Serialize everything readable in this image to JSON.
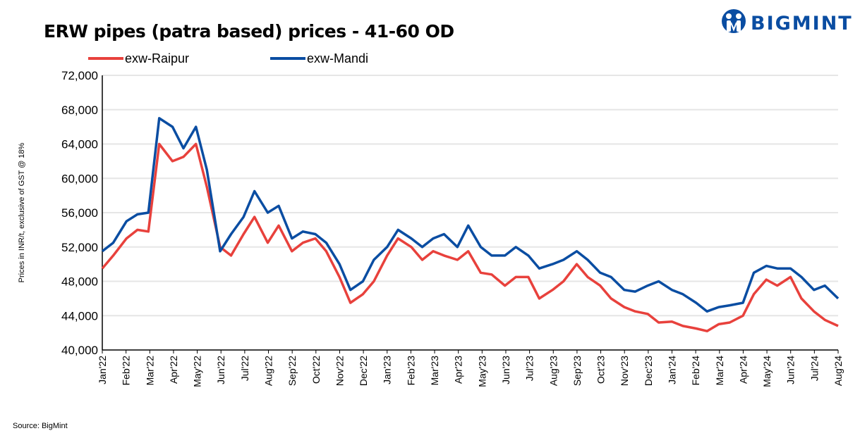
{
  "chart_data": {
    "type": "line",
    "title": "ERW pipes (patra based) prices - 41-60 OD",
    "ylabel": "Prices in INR/t, exclusive of GST @ 18%",
    "xlabel": "",
    "ylim": [
      40000,
      72000
    ],
    "yticks": [
      40000,
      44000,
      48000,
      52000,
      56000,
      60000,
      64000,
      68000,
      72000
    ],
    "ytick_labels": [
      "40,000",
      "44,000",
      "48,000",
      "52,000",
      "56,000",
      "60,000",
      "64,000",
      "68,000",
      "72,000"
    ],
    "xlim": [
      "2022-01-01",
      "2024-08-01"
    ],
    "xtick_labels": [
      "Jan'22",
      "Feb'22",
      "Mar'22",
      "Apr'22",
      "May'22",
      "Jun'22",
      "Jul'22",
      "Aug'22",
      "Sep'22",
      "Oct'22",
      "Nov'22",
      "Dec'22",
      "Jan'23",
      "Feb'23",
      "Mar'23",
      "Apr'23",
      "May'23",
      "Jun'23",
      "Jul'23",
      "Aug'23",
      "Sep'23",
      "Oct'23",
      "Nov'23",
      "Dec'23",
      "Jan'24",
      "Feb'24",
      "Mar'24",
      "Apr'24",
      "May'24",
      "Jun'24",
      "Jul'24",
      "Aug'24"
    ],
    "grid": "horizontal",
    "legend_position": "top-left",
    "x": [
      "2022-01-01",
      "2022-01-15",
      "2022-02-01",
      "2022-02-15",
      "2022-03-01",
      "2022-03-15",
      "2022-04-01",
      "2022-04-15",
      "2022-05-01",
      "2022-05-15",
      "2022-06-01",
      "2022-06-15",
      "2022-07-01",
      "2022-07-15",
      "2022-08-01",
      "2022-08-15",
      "2022-09-01",
      "2022-09-15",
      "2022-10-01",
      "2022-10-15",
      "2022-11-01",
      "2022-11-15",
      "2022-12-01",
      "2022-12-15",
      "2023-01-01",
      "2023-01-15",
      "2023-02-01",
      "2023-02-15",
      "2023-03-01",
      "2023-03-15",
      "2023-04-01",
      "2023-04-15",
      "2023-05-01",
      "2023-05-15",
      "2023-06-01",
      "2023-06-15",
      "2023-07-01",
      "2023-07-15",
      "2023-08-01",
      "2023-08-15",
      "2023-09-01",
      "2023-09-15",
      "2023-10-01",
      "2023-10-15",
      "2023-11-01",
      "2023-11-15",
      "2023-12-01",
      "2023-12-15",
      "2024-01-01",
      "2024-01-15",
      "2024-02-01",
      "2024-02-15",
      "2024-03-01",
      "2024-03-15",
      "2024-04-01",
      "2024-04-15",
      "2024-05-01",
      "2024-05-15",
      "2024-06-01",
      "2024-06-15",
      "2024-07-01",
      "2024-07-15",
      "2024-08-01"
    ],
    "series": [
      {
        "name": "exw-Raipur",
        "color": "#e8413c",
        "values": [
          49500,
          51000,
          53000,
          54000,
          53800,
          64000,
          62000,
          62500,
          64000,
          59000,
          52000,
          51000,
          53500,
          55500,
          52500,
          54500,
          51500,
          52500,
          53000,
          51500,
          48500,
          45500,
          46500,
          48000,
          51000,
          53000,
          52000,
          50500,
          51500,
          51000,
          50500,
          51500,
          49000,
          48800,
          47500,
          48500,
          48500,
          46000,
          47000,
          48000,
          50000,
          48500,
          47500,
          46000,
          45000,
          44500,
          44200,
          43200,
          43300,
          42800,
          42500,
          42200,
          43000,
          43200,
          44000,
          46500,
          48200,
          47500,
          48500,
          46000,
          44500,
          43500,
          42800
        ]
      },
      {
        "name": "exw-Mandi",
        "color": "#0a4da2",
        "values": [
          51500,
          52500,
          55000,
          55800,
          56000,
          67000,
          66000,
          63500,
          66000,
          61000,
          51500,
          53500,
          55500,
          58500,
          56000,
          56800,
          53000,
          53800,
          53500,
          52500,
          50000,
          47000,
          48000,
          50500,
          52000,
          54000,
          53000,
          52000,
          53000,
          53500,
          52000,
          54500,
          52000,
          51000,
          51000,
          52000,
          51000,
          49500,
          50000,
          50500,
          51500,
          50500,
          49000,
          48500,
          47000,
          46800,
          47500,
          48000,
          47000,
          46500,
          45500,
          44500,
          45000,
          45200,
          45500,
          49000,
          49800,
          49500,
          49500,
          48500,
          47000,
          47500,
          46000
        ]
      }
    ]
  },
  "logo": {
    "text": "BIGMINT",
    "color": "#0a4da2"
  },
  "source": "Source: BigMint"
}
